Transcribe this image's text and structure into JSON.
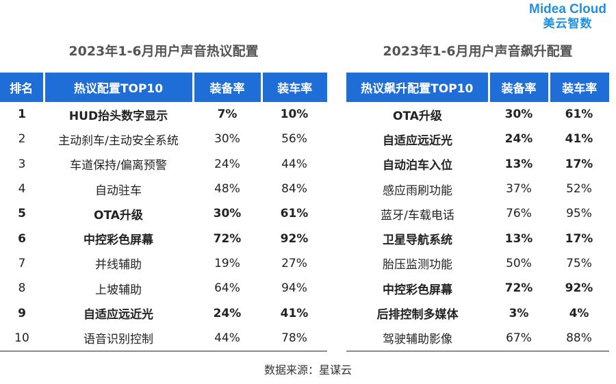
{
  "logo": {
    "brand": "Midea Cloud",
    "brand_cn": "美云智数"
  },
  "left_table": {
    "title": "2023年1-6月用户声音热议配置",
    "headers": [
      "排名",
      "热议配置TOP10",
      "装备率",
      "装车率"
    ],
    "rows": [
      {
        "rank": "1",
        "name": "HUD抬头数字显示",
        "equip": "7%",
        "install": "10%",
        "bold": true
      },
      {
        "rank": "2",
        "name": "主动刹车/主动安全系统",
        "equip": "30%",
        "install": "56%",
        "bold": false
      },
      {
        "rank": "3",
        "name": "车道保持/偏离预警",
        "equip": "24%",
        "install": "44%",
        "bold": false
      },
      {
        "rank": "4",
        "name": "自动驻车",
        "equip": "48%",
        "install": "84%",
        "bold": false
      },
      {
        "rank": "5",
        "name": "OTA升级",
        "equip": "30%",
        "install": "61%",
        "bold": true
      },
      {
        "rank": "6",
        "name": "中控彩色屏幕",
        "equip": "72%",
        "install": "92%",
        "bold": true
      },
      {
        "rank": "7",
        "name": "并线辅助",
        "equip": "19%",
        "install": "27%",
        "bold": false
      },
      {
        "rank": "8",
        "name": "上坡辅助",
        "equip": "64%",
        "install": "94%",
        "bold": false
      },
      {
        "rank": "9",
        "name": "自适应远近光",
        "equip": "24%",
        "install": "41%",
        "bold": true
      },
      {
        "rank": "10",
        "name": "语音识别控制",
        "equip": "44%",
        "install": "78%",
        "bold": false
      }
    ]
  },
  "right_table": {
    "title": "2023年1-6月用户声音飙升配置",
    "headers": [
      "热议飙升配置TOP10",
      "装备率",
      "装车率"
    ],
    "rows": [
      {
        "name": "OTA升级",
        "equip": "30%",
        "install": "61%",
        "bold": true
      },
      {
        "name": "自适应远近光",
        "equip": "24%",
        "install": "41%",
        "bold": true
      },
      {
        "name": "自动泊车入位",
        "equip": "13%",
        "install": "17%",
        "bold": true
      },
      {
        "name": "感应雨刷功能",
        "equip": "37%",
        "install": "52%",
        "bold": false
      },
      {
        "name": "蓝牙/车载电话",
        "equip": "76%",
        "install": "95%",
        "bold": false
      },
      {
        "name": "卫星导航系统",
        "equip": "13%",
        "install": "17%",
        "bold": true
      },
      {
        "name": "胎压监测功能",
        "equip": "50%",
        "install": "75%",
        "bold": false
      },
      {
        "name": "中控彩色屏幕",
        "equip": "72%",
        "install": "92%",
        "bold": true
      },
      {
        "name": "后排控制多媒体",
        "equip": "3%",
        "install": "4%",
        "bold": true
      },
      {
        "name": "驾驶辅助影像",
        "equip": "67%",
        "install": "88%",
        "bold": false
      }
    ]
  },
  "source": "数据来源：星谋云"
}
